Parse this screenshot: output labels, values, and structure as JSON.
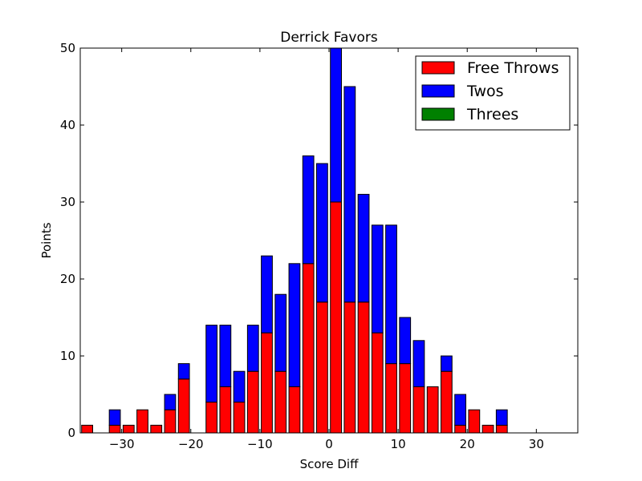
{
  "chart_data": {
    "type": "bar",
    "stacked": true,
    "title": "Derrick Favors",
    "xlabel": "Score Diff",
    "ylabel": "Points",
    "xlim": [
      -36,
      36
    ],
    "ylim": [
      0,
      50
    ],
    "xticks": [
      -30,
      -20,
      -10,
      0,
      10,
      20,
      30
    ],
    "xtick_labels": [
      "−30",
      "−20",
      "−10",
      "0",
      "10",
      "20",
      "30"
    ],
    "yticks": [
      0,
      10,
      20,
      30,
      40,
      50
    ],
    "ytick_labels": [
      "0",
      "10",
      "20",
      "30",
      "40",
      "50"
    ],
    "bar_width": 1.6,
    "legend_position": "top-right",
    "x": [
      -35,
      -33,
      -31,
      -29,
      -27,
      -25,
      -23,
      -21,
      -19,
      -17,
      -15,
      -13,
      -11,
      -9,
      -7,
      -5,
      -3,
      -1,
      1,
      3,
      5,
      7,
      9,
      11,
      13,
      15,
      17,
      19,
      21,
      23,
      25,
      27,
      29,
      31,
      33,
      35
    ],
    "series": [
      {
        "name": "Free Throws",
        "color": "#ff0000",
        "values": [
          1,
          0,
          1,
          1,
          3,
          1,
          3,
          7,
          0,
          4,
          6,
          4,
          8,
          13,
          8,
          6,
          22,
          17,
          30,
          17,
          17,
          13,
          9,
          9,
          6,
          6,
          8,
          1,
          3,
          1,
          1,
          0,
          0,
          0,
          0,
          0
        ]
      },
      {
        "name": "Twos",
        "color": "#0000ff",
        "values": [
          0,
          0,
          2,
          0,
          0,
          0,
          2,
          2,
          0,
          10,
          8,
          4,
          6,
          10,
          10,
          16,
          14,
          18,
          20,
          28,
          14,
          14,
          18,
          6,
          6,
          0,
          2,
          4,
          0,
          0,
          2,
          0,
          0,
          0,
          0,
          0
        ]
      },
      {
        "name": "Threes",
        "color": "#008000",
        "values": [
          0,
          0,
          0,
          0,
          0,
          0,
          0,
          0,
          0,
          0,
          0,
          0,
          0,
          0,
          0,
          0,
          0,
          0,
          0,
          0,
          0,
          0,
          0,
          0,
          0,
          0,
          0,
          0,
          0,
          0,
          0,
          0,
          0,
          0,
          0,
          0
        ]
      }
    ]
  }
}
